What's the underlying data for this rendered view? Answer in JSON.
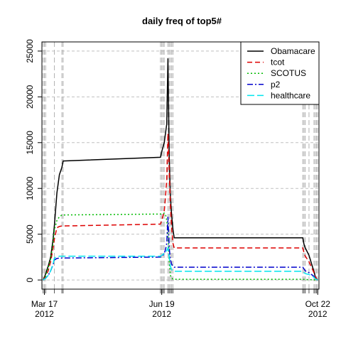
{
  "chart_data": {
    "type": "line",
    "title": "daily freq of top5#",
    "xlabel": "",
    "ylabel": "",
    "ylim": [
      0,
      25000
    ],
    "yticks": [
      0,
      5000,
      10000,
      15000,
      20000,
      25000
    ],
    "xlim": [
      -2,
      220
    ],
    "xticks": [
      {
        "day": 0,
        "label": "Mar 17",
        "label2": "2012"
      },
      {
        "day": 94,
        "label": "Jun 19",
        "label2": "2012"
      },
      {
        "day": 219,
        "label": "Oct 22",
        "label2": "2012"
      }
    ],
    "grid": true,
    "legend_position": "top-right",
    "event_days": [
      -1,
      0,
      1,
      8,
      14,
      15,
      93,
      94,
      95,
      96,
      99,
      100,
      101,
      102,
      103,
      207,
      208,
      209,
      212,
      216,
      217,
      218,
      219
    ],
    "series": [
      {
        "name": "Obamacare",
        "color": "#000000",
        "dash": "",
        "x": [
          -1,
          0,
          1,
          3,
          5,
          7,
          8,
          10,
          12,
          14,
          15,
          93,
          94,
          95,
          96,
          97,
          98,
          99,
          100,
          101,
          102,
          103,
          104,
          207,
          208,
          209,
          212,
          216,
          217,
          218,
          219
        ],
        "y": [
          0,
          300,
          700,
          1500,
          2500,
          4500,
          6000,
          9500,
          11500,
          12300,
          13000,
          13400,
          14000,
          14500,
          15000,
          16000,
          17000,
          24200,
          13500,
          9000,
          7000,
          5500,
          4600,
          4600,
          3900,
          3500,
          2700,
          900,
          400,
          150,
          0
        ]
      },
      {
        "name": "tcot",
        "color": "#dd0000",
        "dash": "7,4",
        "x": [
          -1,
          0,
          1,
          3,
          5,
          7,
          8,
          10,
          12,
          14,
          15,
          93,
          94,
          95,
          96,
          97,
          98,
          99,
          100,
          101,
          102,
          103,
          104,
          207,
          208,
          209,
          212,
          216,
          217,
          218,
          219
        ],
        "y": [
          0,
          200,
          400,
          1000,
          2000,
          3500,
          4500,
          5700,
          5850,
          5900,
          5900,
          6100,
          6500,
          7000,
          7500,
          9000,
          11000,
          16000,
          12000,
          8000,
          5500,
          4000,
          3500,
          3500,
          3000,
          2600,
          2000,
          800,
          400,
          150,
          0
        ]
      },
      {
        "name": "SCOTUS",
        "color": "#00bb00",
        "dash": "2,3",
        "x": [
          -1,
          0,
          1,
          3,
          5,
          7,
          8,
          10,
          12,
          14,
          15,
          93,
          94,
          95,
          96,
          97,
          98,
          99,
          100,
          101,
          102,
          103,
          104,
          207,
          208,
          209,
          212,
          216,
          217,
          218,
          219
        ],
        "y": [
          0,
          200,
          500,
          1300,
          2300,
          4000,
          5500,
          6500,
          6900,
          7100,
          7100,
          7200,
          7200,
          7250,
          7300,
          7200,
          6500,
          5000,
          2000,
          500,
          200,
          100,
          80,
          80,
          60,
          50,
          40,
          20,
          10,
          5,
          0
        ]
      },
      {
        "name": "p2",
        "color": "#0000cc",
        "dash": "8,3,2,3",
        "x": [
          -1,
          0,
          1,
          3,
          5,
          7,
          8,
          10,
          12,
          14,
          15,
          93,
          94,
          95,
          96,
          97,
          98,
          99,
          100,
          101,
          102,
          103,
          104,
          207,
          208,
          209,
          212,
          216,
          217,
          218,
          219
        ],
        "y": [
          0,
          100,
          200,
          500,
          1000,
          1700,
          2200,
          2350,
          2400,
          2400,
          2400,
          2500,
          2600,
          2700,
          2900,
          3300,
          4000,
          6900,
          3500,
          2200,
          1700,
          1500,
          1400,
          1400,
          1200,
          1000,
          800,
          400,
          200,
          80,
          0
        ]
      },
      {
        "name": "healthcare",
        "color": "#00e5ee",
        "dash": "10,4",
        "x": [
          -1,
          0,
          1,
          3,
          5,
          7,
          8,
          10,
          12,
          14,
          15,
          93,
          94,
          95,
          96,
          97,
          98,
          99,
          100,
          101,
          102,
          103,
          104,
          207,
          208,
          209,
          212,
          216,
          217,
          218,
          219
        ],
        "y": [
          0,
          100,
          200,
          500,
          1000,
          1800,
          2400,
          2550,
          2600,
          2600,
          2600,
          2600,
          2700,
          2800,
          2900,
          3000,
          3200,
          3500,
          2500,
          1500,
          1100,
          1000,
          950,
          950,
          800,
          700,
          600,
          300,
          150,
          60,
          0
        ]
      }
    ]
  }
}
